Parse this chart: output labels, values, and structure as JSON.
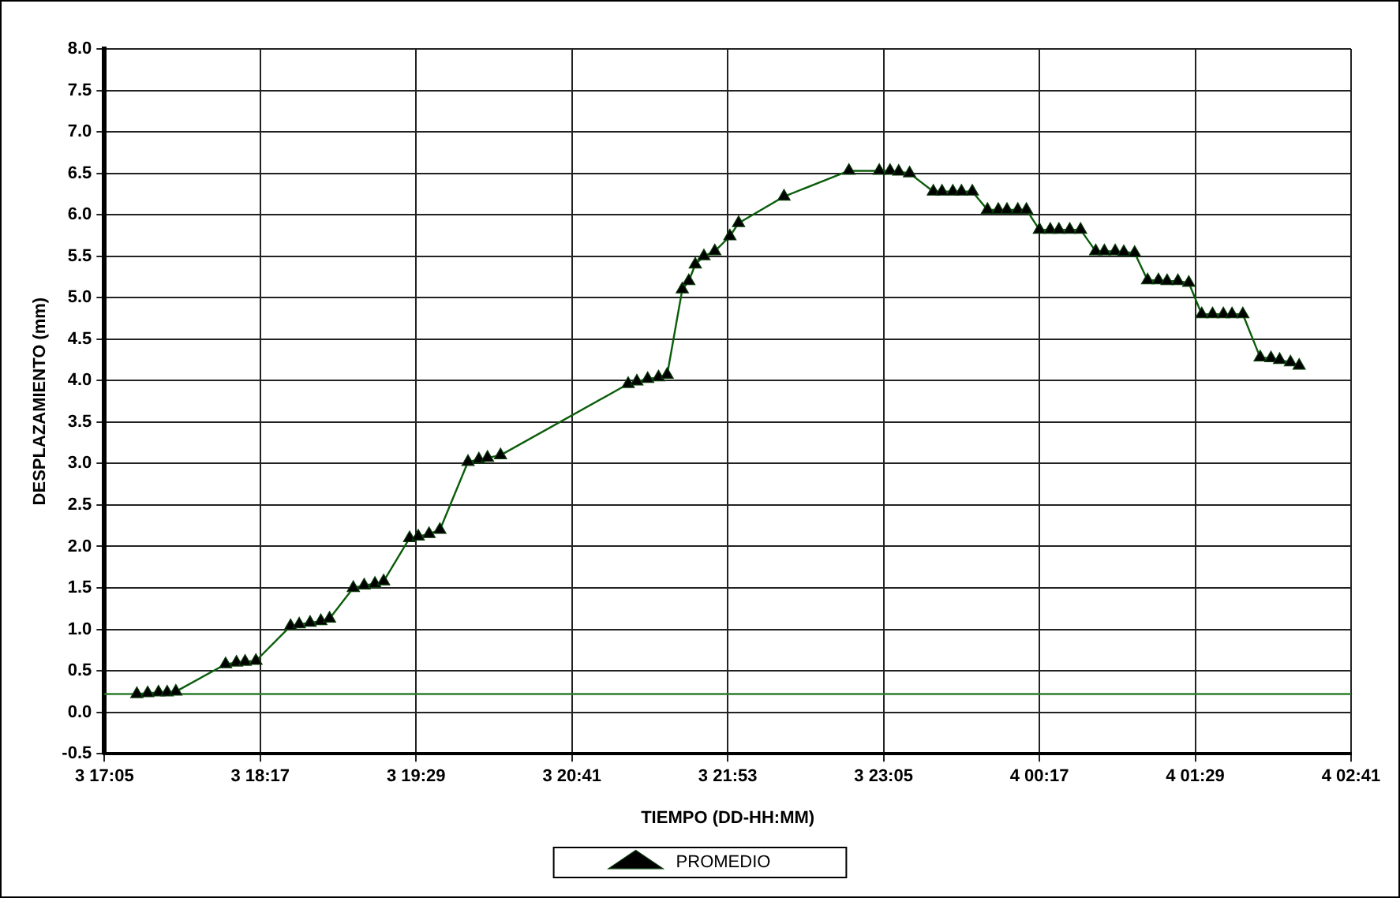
{
  "chart_data": {
    "type": "line",
    "xlabel": "TIEMPO (DD-HH:MM)",
    "ylabel": "DESPLAZAMIENTO (mm)",
    "xlim": [
      "--01-03T17:05",
      "--01-04T02:41"
    ],
    "xticks": [
      {
        "value": "--01-03T17:05",
        "label": "3 17:05"
      },
      {
        "value": "--01-03T18:17",
        "label": "3 18:17"
      },
      {
        "value": "--01-03T19:29",
        "label": "3 19:29"
      },
      {
        "value": "--01-03T20:41",
        "label": "3 20:41"
      },
      {
        "value": "--01-03T21:53",
        "label": "3 21:53"
      },
      {
        "value": "--01-03T23:05",
        "label": "3 23:05"
      },
      {
        "value": "--01-04T00:17",
        "label": "4 00:17"
      },
      {
        "value": "--01-04T01:29",
        "label": "4 01:29"
      },
      {
        "value": "--01-04T02:41",
        "label": "4 02:41"
      }
    ],
    "ylim": [
      -0.5,
      8
    ],
    "yticks": [
      {
        "value": -0.5,
        "label": "-0.5"
      },
      {
        "value": 0,
        "label": "0.0"
      },
      {
        "value": 0.5,
        "label": "0.5"
      },
      {
        "value": 1,
        "label": "1.0"
      },
      {
        "value": 1.5,
        "label": "1.5"
      },
      {
        "value": 2,
        "label": "2.0"
      },
      {
        "value": 2.5,
        "label": "2.5"
      },
      {
        "value": 3,
        "label": "3.0"
      },
      {
        "value": 3.5,
        "label": "3.5"
      },
      {
        "value": 4,
        "label": "4.0"
      },
      {
        "value": 4.5,
        "label": "4.5"
      },
      {
        "value": 5,
        "label": "5.0"
      },
      {
        "value": 5.5,
        "label": "5.5"
      },
      {
        "value": 6,
        "label": "6.0"
      },
      {
        "value": 6.5,
        "label": "6.5"
      },
      {
        "value": 7,
        "label": "7.0"
      },
      {
        "value": 7.5,
        "label": "7.5"
      },
      {
        "value": 8,
        "label": "8.0"
      }
    ],
    "grid": true,
    "legend": "bottom",
    "marker": "triangle",
    "line_style": "solid",
    "ref_lines": [
      {
        "axis": "y",
        "value": 0.22,
        "color": "#2e7d2e"
      }
    ],
    "series": [
      {
        "name": "PROMEDIO",
        "color": "#0b5d0b",
        "x": [
          "--01-03T17:20",
          "--01-03T17:25",
          "--01-03T17:30",
          "--01-03T17:34",
          "--01-03T17:38",
          "--01-03T18:01",
          "--01-03T18:06",
          "--01-03T18:10",
          "--01-03T18:15",
          "--01-03T18:31",
          "--01-03T18:35",
          "--01-03T18:40",
          "--01-03T18:45",
          "--01-03T18:49",
          "--01-03T19:00",
          "--01-03T19:05",
          "--01-03T19:10",
          "--01-03T19:14",
          "--01-03T19:26",
          "--01-03T19:30",
          "--01-03T19:35",
          "--01-03T19:40",
          "--01-03T19:53",
          "--01-03T19:58",
          "--01-03T20:02",
          "--01-03T20:08",
          "--01-03T21:07",
          "--01-03T21:11",
          "--01-03T21:16",
          "--01-03T21:21",
          "--01-03T21:25",
          "--01-03T21:32",
          "--01-03T21:35",
          "--01-03T21:38",
          "--01-03T21:42",
          "--01-03T21:47",
          "--01-03T21:54",
          "--01-03T21:58",
          "--01-03T22:19",
          "--01-03T22:49",
          "--01-03T23:03",
          "--01-03T23:08",
          "--01-03T23:12",
          "--01-03T23:17",
          "--01-03T23:28",
          "--01-03T23:32",
          "--01-03T23:37",
          "--01-03T23:41",
          "--01-03T23:46",
          "--01-03T23:53",
          "--01-03T23:58",
          "--01-04T00:02",
          "--01-04T00:07",
          "--01-04T00:11",
          "--01-04T00:17",
          "--01-04T00:22",
          "--01-04T00:26",
          "--01-04T00:31",
          "--01-04T00:36",
          "--01-04T00:43",
          "--01-04T00:47",
          "--01-04T00:52",
          "--01-04T00:56",
          "--01-04T01:01",
          "--01-04T01:07",
          "--01-04T01:12",
          "--01-04T01:16",
          "--01-04T01:21",
          "--01-04T01:26",
          "--01-04T01:32",
          "--01-04T01:37",
          "--01-04T01:42",
          "--01-04T01:46",
          "--01-04T01:51",
          "--01-04T01:59",
          "--01-04T02:04",
          "--01-04T02:08",
          "--01-04T02:13",
          "--01-04T02:17"
        ],
        "values": [
          0.22,
          0.23,
          0.24,
          0.24,
          0.25,
          0.58,
          0.6,
          0.61,
          0.62,
          1.04,
          1.06,
          1.08,
          1.1,
          1.13,
          1.5,
          1.53,
          1.55,
          1.58,
          2.1,
          2.12,
          2.15,
          2.2,
          3.02,
          3.05,
          3.07,
          3.1,
          3.96,
          3.99,
          4.02,
          4.04,
          4.07,
          5.1,
          5.2,
          5.4,
          5.5,
          5.56,
          5.74,
          5.9,
          6.22,
          6.53,
          6.53,
          6.53,
          6.52,
          6.5,
          6.28,
          6.28,
          6.28,
          6.28,
          6.28,
          6.06,
          6.06,
          6.06,
          6.06,
          6.06,
          5.82,
          5.82,
          5.82,
          5.82,
          5.82,
          5.56,
          5.56,
          5.56,
          5.55,
          5.54,
          5.21,
          5.21,
          5.2,
          5.2,
          5.18,
          4.8,
          4.8,
          4.8,
          4.8,
          4.8,
          4.28,
          4.27,
          4.25,
          4.22,
          4.18
        ]
      }
    ]
  }
}
